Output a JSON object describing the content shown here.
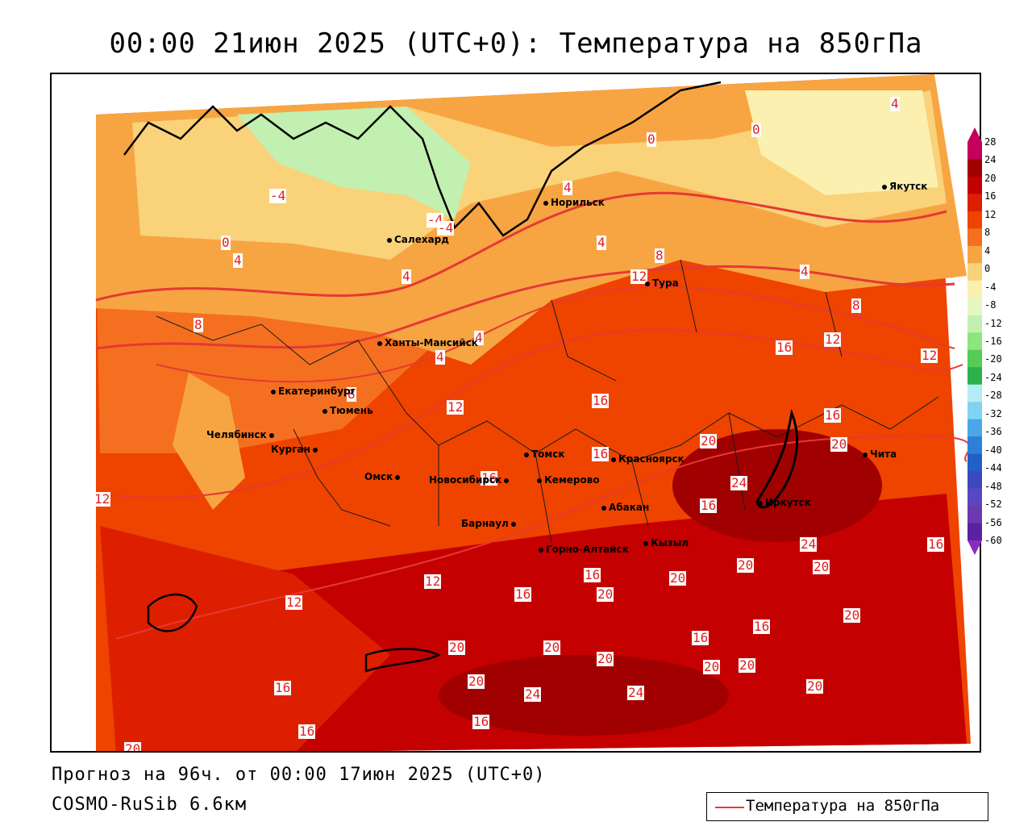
{
  "header": {
    "title": "00:00 21июн 2025 (UTC+0): Температура на 850гПа"
  },
  "footer": {
    "forecast": "Прогноз на 96ч. от 00:00 17июн 2025 (UTC+0)",
    "model": "COSMO-RuSib 6.6км"
  },
  "legend": {
    "label": "Температура на 850гПа",
    "line_color": "#e53935"
  },
  "colorbar": {
    "levels": [
      "28",
      "24",
      "20",
      "16",
      "12",
      "8",
      "4",
      "0",
      "-4",
      "-8",
      "-12",
      "-16",
      "-20",
      "-24",
      "-28",
      "-32",
      "-36",
      "-40",
      "-44",
      "-48",
      "-52",
      "-56",
      "-60"
    ],
    "colors": [
      "#c4005a",
      "#a00000",
      "#c40000",
      "#dd1f00",
      "#ee4400",
      "#f47020",
      "#f7a542",
      "#f9d27a",
      "#fbf0b0",
      "#e6f8c2",
      "#c2f0b0",
      "#8ee47f",
      "#55cc55",
      "#2eb04a",
      "#b6ecf5",
      "#80d4f0",
      "#4aa8e8",
      "#2f7fd8",
      "#2060c8",
      "#3b48c0",
      "#5a46c0",
      "#6b3ab0",
      "#5a22a0"
    ]
  },
  "cities": [
    {
      "name": "Якутск"
    },
    {
      "name": "Норильск"
    },
    {
      "name": "Салехард"
    },
    {
      "name": "Тура"
    },
    {
      "name": "Ханты-Мансийск"
    },
    {
      "name": "Екатеринбург"
    },
    {
      "name": "Тюмень"
    },
    {
      "name": "Челябинск"
    },
    {
      "name": "Курган"
    },
    {
      "name": "Омск"
    },
    {
      "name": "Новосибирск"
    },
    {
      "name": "Томск"
    },
    {
      "name": "Кемерово"
    },
    {
      "name": "Красноярск"
    },
    {
      "name": "Барнаул"
    },
    {
      "name": "Абакан"
    },
    {
      "name": "Горно-Алтайск"
    },
    {
      "name": "Кызыл"
    },
    {
      "name": "Иркутск"
    },
    {
      "name": "Чита"
    }
  ],
  "isotherm_labels": [
    "-4",
    "-4",
    "-4",
    "0",
    "0",
    "0",
    "4",
    "4",
    "4",
    "4",
    "4",
    "4",
    "4",
    "4",
    "8",
    "8",
    "8",
    "8",
    "12",
    "12",
    "12",
    "12",
    "12",
    "12",
    "12",
    "16",
    "16",
    "16",
    "16",
    "16",
    "16",
    "16",
    "16",
    "16",
    "16",
    "16",
    "16",
    "16",
    "16",
    "20",
    "20",
    "20",
    "20",
    "20",
    "20",
    "20",
    "20",
    "20",
    "20",
    "20",
    "20",
    "20",
    "20",
    "20",
    "24",
    "24",
    "24",
    "24"
  ]
}
